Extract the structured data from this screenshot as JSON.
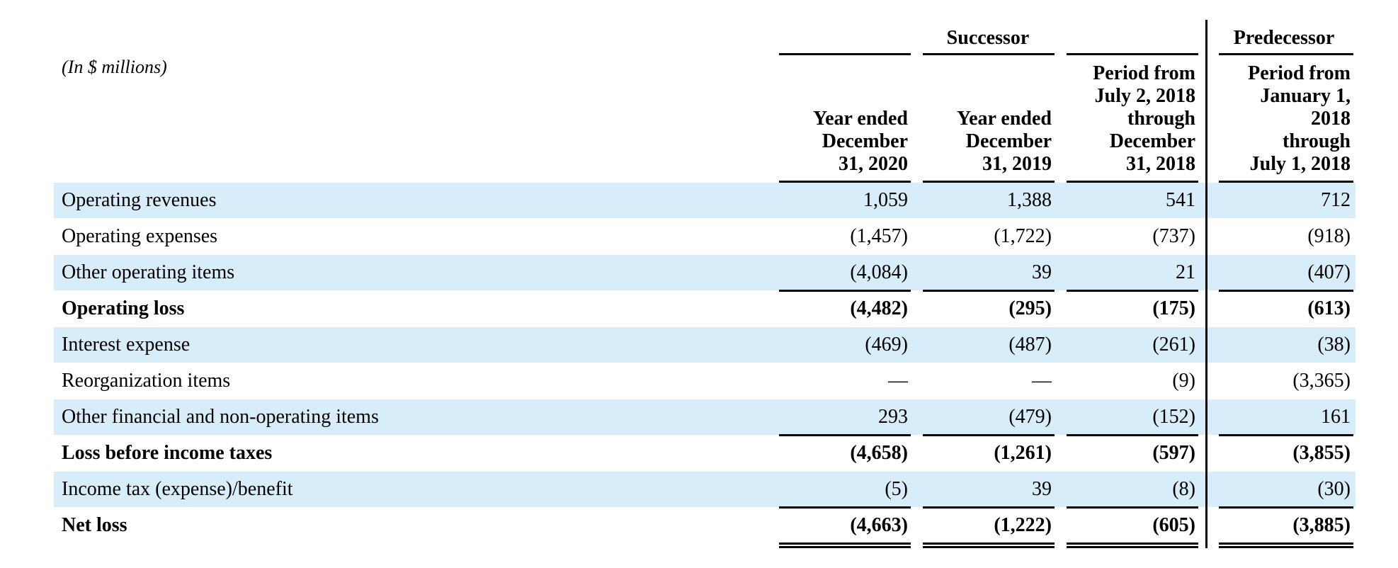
{
  "units_note": "(In $ millions)",
  "groups": {
    "successor": "Successor",
    "predecessor": "Predecessor"
  },
  "columns": [
    {
      "lines": [
        "Year ended",
        "December",
        "31, 2020"
      ]
    },
    {
      "lines": [
        "Year ended",
        "December",
        "31, 2019"
      ]
    },
    {
      "lines": [
        "Period from",
        "July 2, 2018",
        "through",
        "December",
        "31, 2018"
      ]
    },
    {
      "lines": [
        "Period from",
        "January 1,",
        "2018",
        "through",
        "July 1, 2018"
      ]
    }
  ],
  "rows": [
    {
      "label": "Operating revenues",
      "bold": false,
      "values": [
        "1,059",
        "1,388",
        "541",
        "712"
      ]
    },
    {
      "label": "Operating expenses",
      "bold": false,
      "values": [
        "(1,457)",
        "(1,722)",
        "(737)",
        "(918)"
      ]
    },
    {
      "label": "Other operating items",
      "bold": false,
      "values": [
        "(4,084)",
        "39",
        "21",
        "(407)"
      ]
    },
    {
      "label": "Operating loss",
      "bold": true,
      "values": [
        "(4,482)",
        "(295)",
        "(175)",
        "(613)"
      ]
    },
    {
      "label": "Interest expense",
      "bold": false,
      "values": [
        "(469)",
        "(487)",
        "(261)",
        "(38)"
      ]
    },
    {
      "label": "Reorganization items",
      "bold": false,
      "values": [
        "—",
        "—",
        "(9)",
        "(3,365)"
      ]
    },
    {
      "label": "Other financial and non-operating items",
      "bold": false,
      "values": [
        "293",
        "(479)",
        "(152)",
        "161"
      ]
    },
    {
      "label": "Loss before income taxes",
      "bold": true,
      "values": [
        "(4,658)",
        "(1,261)",
        "(597)",
        "(3,855)"
      ]
    },
    {
      "label": "Income tax (expense)/benefit",
      "bold": false,
      "values": [
        "(5)",
        "39",
        "(8)",
        "(30)"
      ]
    },
    {
      "label": "Net loss",
      "bold": true,
      "values": [
        "(4,663)",
        "(1,222)",
        "(605)",
        "(3,885)"
      ]
    }
  ]
}
